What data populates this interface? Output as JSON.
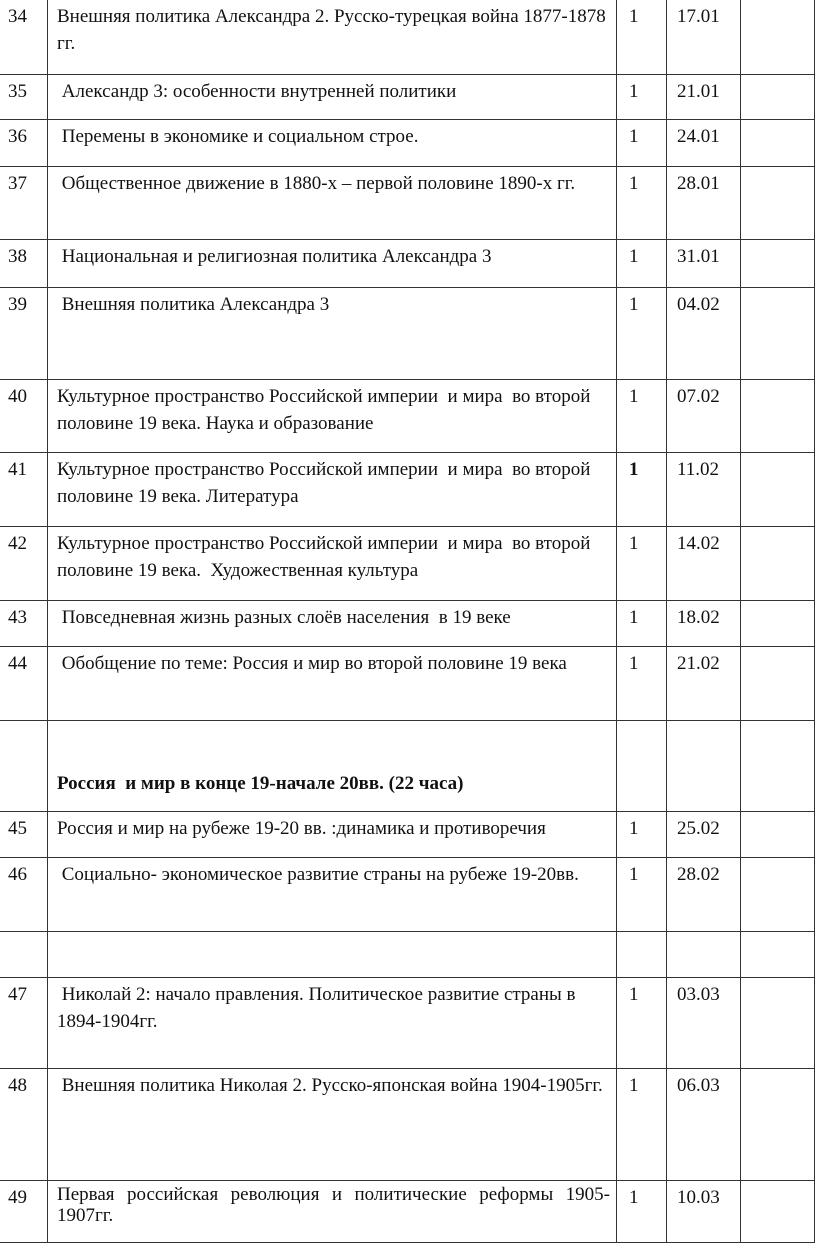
{
  "rows": [
    {
      "num": "34",
      "topic": "Внешняя политика Александра 2. Русско-турецкая война 1877-1878 гг.",
      "hours": "1",
      "date": "17.01"
    },
    {
      "num": "35",
      "topic": " Александр 3: особенности внутренней политики",
      "hours": "1",
      "date": "21.01"
    },
    {
      "num": "36",
      "topic": " Перемены в экономике и социальном строе.",
      "hours": "1",
      "date": "24.01"
    },
    {
      "num": "37",
      "topic": " Общественное движение в 1880-х – первой половине 1890-х гг.",
      "hours": "1",
      "date": "28.01"
    },
    {
      "num": "38",
      "topic": " Национальная и религиозная политика Александра 3",
      "hours": "1",
      "date": "31.01"
    },
    {
      "num": "39",
      "topic": " Внешняя политика Александра 3",
      "hours": "1",
      "date": "04.02"
    },
    {
      "num": "40",
      "topic": "Культурное пространство Российской империи  и мира  во второй половине 19 века. Наука и образование",
      "hours": "1",
      "date": "07.02"
    },
    {
      "num": "41",
      "topic": "Культурное пространство Российской империи  и мира  во второй половине 19 века. Литература",
      "hours": "1",
      "date": "11.02",
      "hours_bold": true
    },
    {
      "num": "42",
      "topic": "Культурное пространство Российской империи  и мира  во второй половине 19 века.  Художественная культура",
      "hours": "1",
      "date": "14.02"
    },
    {
      "num": "43",
      "topic": " Повседневная жизнь разных слоёв населения  в 19 веке",
      "hours": "1",
      "date": "18.02"
    },
    {
      "num": "44",
      "topic": " Обобщение по теме: Россия и мир во второй половине 19 века",
      "hours": "1",
      "date": "21.02"
    },
    {
      "section": "Россия  и мир в конце 19-начале 20вв. (22 часа)"
    },
    {
      "num": "45",
      "topic": "Россия и мир на рубеже 19-20 вв. :динамика и противоречия",
      "hours": "1",
      "date": "25.02"
    },
    {
      "num": "46",
      "topic": " Социально- экономическое развитие страны на рубеже 19-20вв.",
      "hours": "1",
      "date": "28.02"
    },
    {
      "blank": true
    },
    {
      "num": "47",
      "topic": " Николай 2: начало правления. Политическое развитие страны в 1894-1904гг.",
      "hours": "1",
      "date": "03.03"
    },
    {
      "num": "48",
      "topic": " Внешняя политика Николая 2. Русско-японская война 1904-1905гг.",
      "hours": "1",
      "date": "06.03"
    },
    {
      "num": "49",
      "topic": "Первая российская революция и политические реформы 1905-1907гг.",
      "hours": "1",
      "date": "10.03",
      "justified": true
    }
  ]
}
